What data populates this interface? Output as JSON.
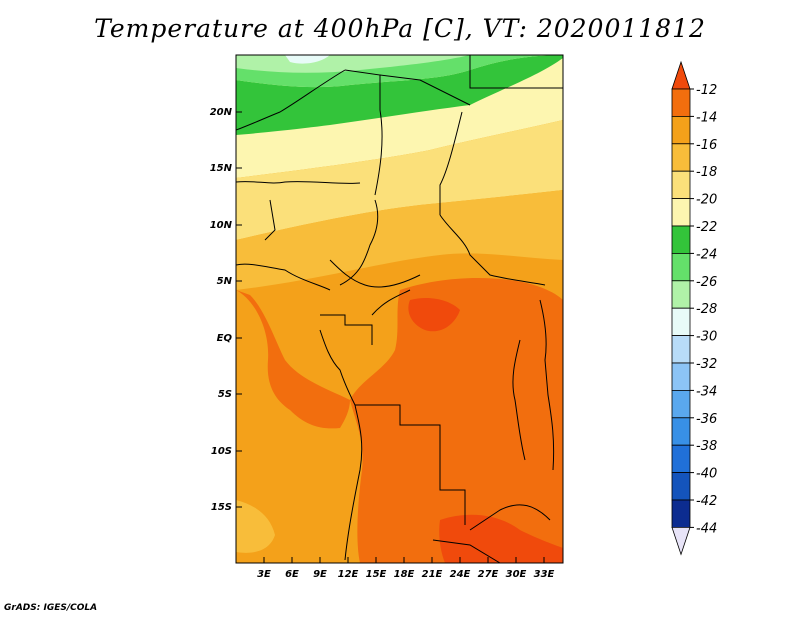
{
  "title": "Temperature at 400hPa [C], VT: 2020011812",
  "credit": "GrADS: IGES/COLA",
  "map": {
    "lat_labels": [
      "20N",
      "15N",
      "10N",
      "5N",
      "EQ",
      "5S",
      "10S",
      "15S"
    ],
    "lon_labels": [
      "3E",
      "6E",
      "9E",
      "12E",
      "15E",
      "18E",
      "21E",
      "24E",
      "27E",
      "30E",
      "33E"
    ]
  },
  "colorbar": {
    "labels": [
      "-12",
      "-14",
      "-16",
      "-18",
      "-20",
      "-22",
      "-24",
      "-26",
      "-28",
      "-30",
      "-32",
      "-34",
      "-36",
      "-38",
      "-40",
      "-42",
      "-44"
    ],
    "colors": [
      "#f04a0c",
      "#f26e0e",
      "#f4a11a",
      "#f8bd3a",
      "#fbe07a",
      "#fdf6b0",
      "#33c43a",
      "#64e06a",
      "#b0f2a8",
      "#e8fbf8",
      "#b8dcf8",
      "#8cc4f6",
      "#5aa8ee",
      "#3890e6",
      "#2070d8",
      "#1454bc",
      "#0c2c90",
      "#e8e4f8"
    ]
  }
}
